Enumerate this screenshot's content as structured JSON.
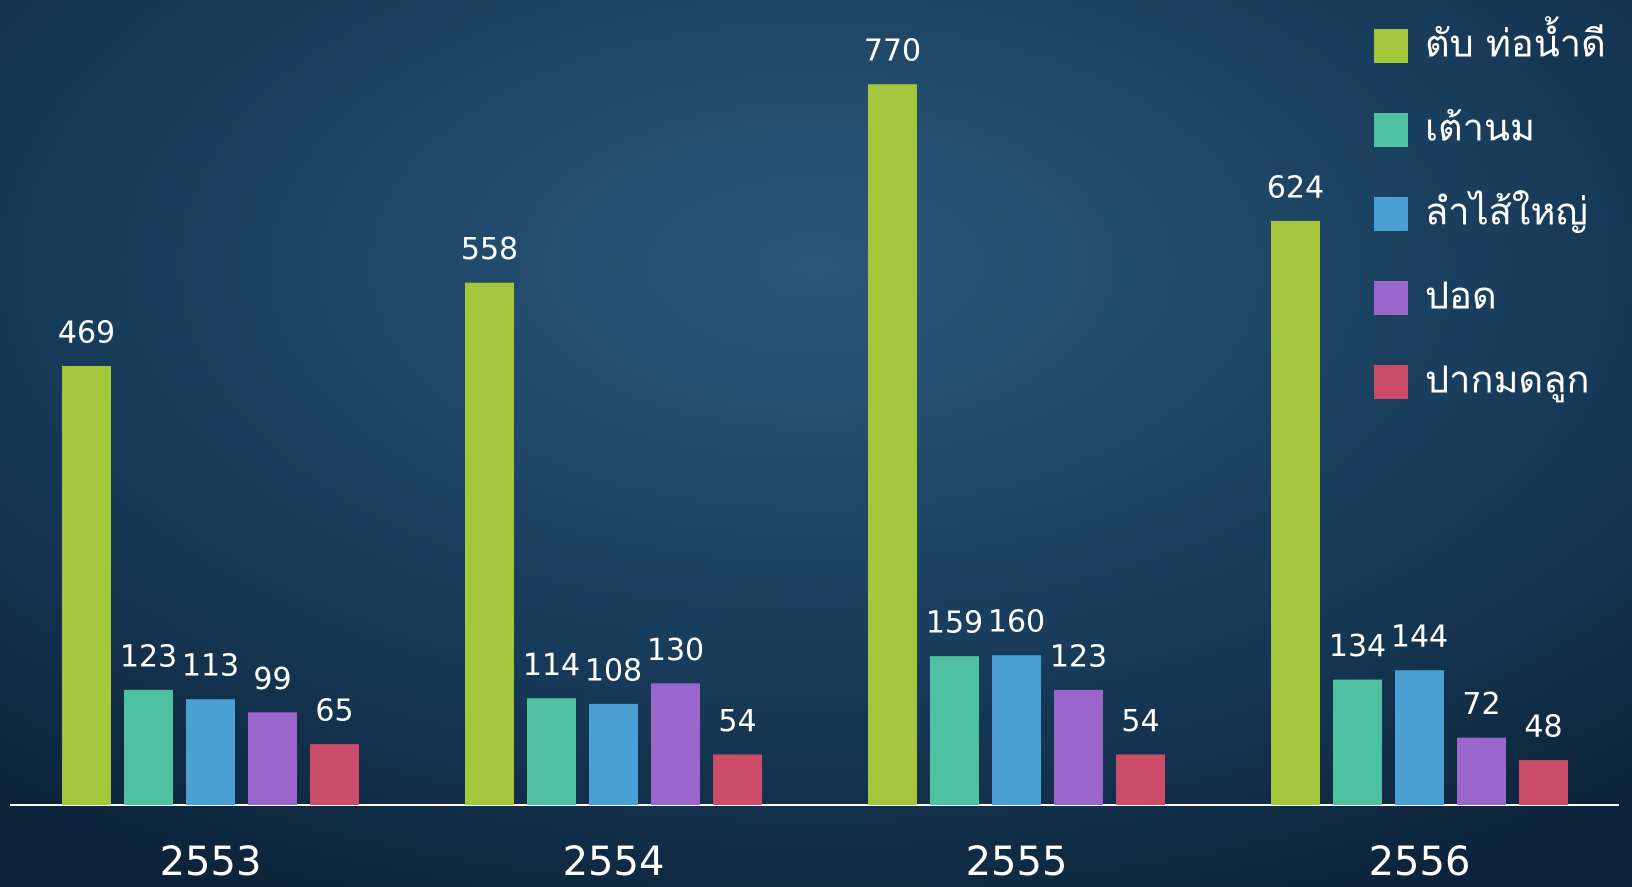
{
  "chart_data": {
    "type": "bar",
    "categories": [
      "2553",
      "2554",
      "2555",
      "2556"
    ],
    "series": [
      {
        "name": "ตับ ท่อน้ำดี",
        "color": "#a4c63c",
        "values": [
          469,
          558,
          770,
          624
        ]
      },
      {
        "name": "เต้านม",
        "color": "#4ec1a1",
        "values": [
          123,
          114,
          159,
          134
        ]
      },
      {
        "name": "ลำไส้ใหญ่",
        "color": "#4a9fd4",
        "values": [
          113,
          108,
          160,
          144
        ]
      },
      {
        "name": "ปอด",
        "color": "#9a66cc",
        "values": [
          99,
          130,
          123,
          72
        ]
      },
      {
        "name": "ปากมดลูก",
        "color": "#cc4d6a",
        "values": [
          65,
          54,
          54,
          48
        ]
      }
    ],
    "ylim": [
      0,
      860
    ],
    "legend": "top-right"
  }
}
